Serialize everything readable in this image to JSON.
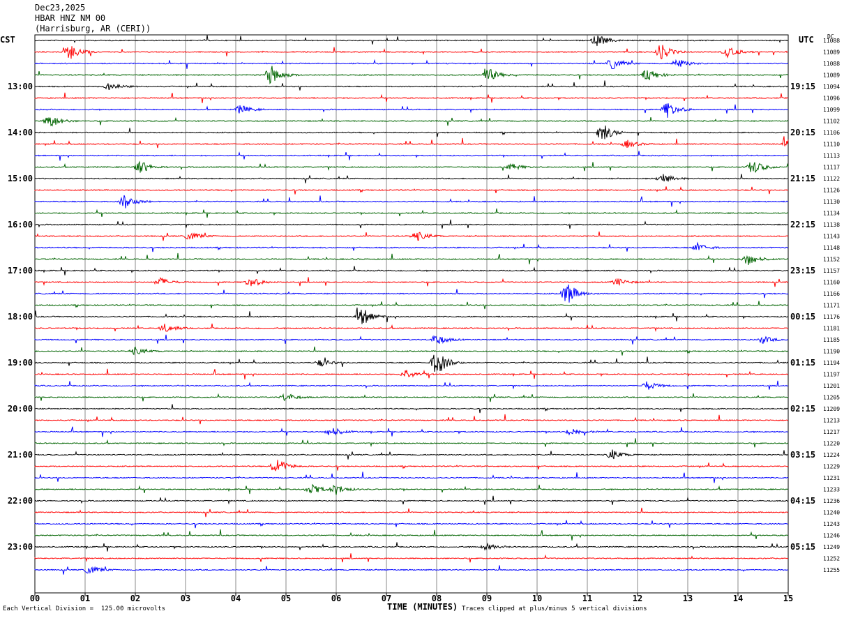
{
  "header": {
    "date": "Dec23,2025",
    "station": "HBAR HNZ NM 00",
    "location": "(Harrisburg, AR (CERI))"
  },
  "left_tz": "CST",
  "right_tz": "UTC",
  "dc_label": "DC",
  "footer": {
    "scale_note": "Each Vertical Division =  125.00 microvolts",
    "clip_note": "Traces clipped at plus/minus 5 vertical divisions"
  },
  "chart_data": {
    "type": "line",
    "xlabel": "TIME (MINUTES)",
    "xlim": [
      0,
      15
    ],
    "x_ticks": [
      "00",
      "01",
      "02",
      "03",
      "04",
      "05",
      "06",
      "07",
      "08",
      "09",
      "10",
      "11",
      "12",
      "13",
      "14",
      "15"
    ],
    "trace_colors": [
      "#000000",
      "#ff0000",
      "#0000ff",
      "#006400"
    ],
    "left_hour_labels": [
      "13:00",
      "14:00",
      "15:00",
      "16:00",
      "17:00",
      "18:00",
      "19:00",
      "20:00",
      "21:00",
      "22:00",
      "23:00"
    ],
    "right_hour_labels": [
      "19:15",
      "20:15",
      "21:15",
      "22:15",
      "23:15",
      "00:15",
      "01:15",
      "02:15",
      "03:15",
      "04:15",
      "05:15"
    ],
    "dc_offsets": [
      11088,
      11089,
      11088,
      11089,
      11094,
      11096,
      11099,
      11102,
      11106,
      11110,
      11113,
      11117,
      11122,
      11126,
      11130,
      11134,
      11138,
      11143,
      11148,
      11152,
      11157,
      11160,
      11166,
      11171,
      11176,
      11181,
      11185,
      11190,
      11194,
      11197,
      11201,
      11205,
      11209,
      11213,
      11217,
      11220,
      11224,
      11229,
      11231,
      11233,
      11236,
      11240,
      11243,
      11246,
      11249,
      11252,
      11255
    ],
    "events": [
      {
        "trace": 0,
        "minute": 11.2,
        "amp": 1.0
      },
      {
        "trace": 1,
        "minute": 0.7,
        "amp": 1.2
      },
      {
        "trace": 1,
        "minute": 12.45,
        "amp": 1.4
      },
      {
        "trace": 1,
        "minute": 13.8,
        "amp": 0.8
      },
      {
        "trace": 2,
        "minute": 11.5,
        "amp": 0.9
      },
      {
        "trace": 2,
        "minute": 12.8,
        "amp": 0.8
      },
      {
        "trace": 3,
        "minute": 4.7,
        "amp": 1.6
      },
      {
        "trace": 3,
        "minute": 9.0,
        "amp": 1.3
      },
      {
        "trace": 3,
        "minute": 12.2,
        "amp": 1.0
      },
      {
        "trace": 4,
        "minute": 1.5,
        "amp": 0.6
      },
      {
        "trace": 6,
        "minute": 4.1,
        "amp": 0.7
      },
      {
        "trace": 6,
        "minute": 12.6,
        "amp": 1.3
      },
      {
        "trace": 7,
        "minute": 0.3,
        "amp": 1.1
      },
      {
        "trace": 8,
        "minute": 11.3,
        "amp": 1.5
      },
      {
        "trace": 9,
        "minute": 11.8,
        "amp": 0.6
      },
      {
        "trace": 9,
        "minute": 15.0,
        "amp": 1.0
      },
      {
        "trace": 11,
        "minute": 2.1,
        "amp": 1.0
      },
      {
        "trace": 11,
        "minute": 9.5,
        "amp": 0.5
      },
      {
        "trace": 11,
        "minute": 14.3,
        "amp": 1.2
      },
      {
        "trace": 12,
        "minute": 12.5,
        "amp": 0.8
      },
      {
        "trace": 14,
        "minute": 1.8,
        "amp": 1.1
      },
      {
        "trace": 17,
        "minute": 3.1,
        "amp": 0.7
      },
      {
        "trace": 17,
        "minute": 7.6,
        "amp": 0.8
      },
      {
        "trace": 18,
        "minute": 13.2,
        "amp": 0.7
      },
      {
        "trace": 19,
        "minute": 14.2,
        "amp": 1.0
      },
      {
        "trace": 21,
        "minute": 2.5,
        "amp": 0.7
      },
      {
        "trace": 21,
        "minute": 4.3,
        "amp": 0.8
      },
      {
        "trace": 21,
        "minute": 11.6,
        "amp": 0.6
      },
      {
        "trace": 22,
        "minute": 10.6,
        "amp": 1.9
      },
      {
        "trace": 24,
        "minute": 6.5,
        "amp": 1.6
      },
      {
        "trace": 25,
        "minute": 2.6,
        "amp": 0.7
      },
      {
        "trace": 26,
        "minute": 8.0,
        "amp": 0.9
      },
      {
        "trace": 26,
        "minute": 14.5,
        "amp": 0.6
      },
      {
        "trace": 27,
        "minute": 2.0,
        "amp": 0.6
      },
      {
        "trace": 28,
        "minute": 8.0,
        "amp": 2.2
      },
      {
        "trace": 28,
        "minute": 5.7,
        "amp": 0.6
      },
      {
        "trace": 29,
        "minute": 7.4,
        "amp": 0.8
      },
      {
        "trace": 30,
        "minute": 12.2,
        "amp": 0.7
      },
      {
        "trace": 31,
        "minute": 5.0,
        "amp": 0.7
      },
      {
        "trace": 34,
        "minute": 5.9,
        "amp": 0.8
      },
      {
        "trace": 34,
        "minute": 10.7,
        "amp": 0.7
      },
      {
        "trace": 36,
        "minute": 11.5,
        "amp": 0.8
      },
      {
        "trace": 37,
        "minute": 4.8,
        "amp": 1.5
      },
      {
        "trace": 39,
        "minute": 5.5,
        "amp": 0.9
      },
      {
        "trace": 39,
        "minute": 6.0,
        "amp": 0.8
      },
      {
        "trace": 44,
        "minute": 9.0,
        "amp": 0.5
      },
      {
        "trace": 46,
        "minute": 1.1,
        "amp": 0.7
      }
    ]
  }
}
